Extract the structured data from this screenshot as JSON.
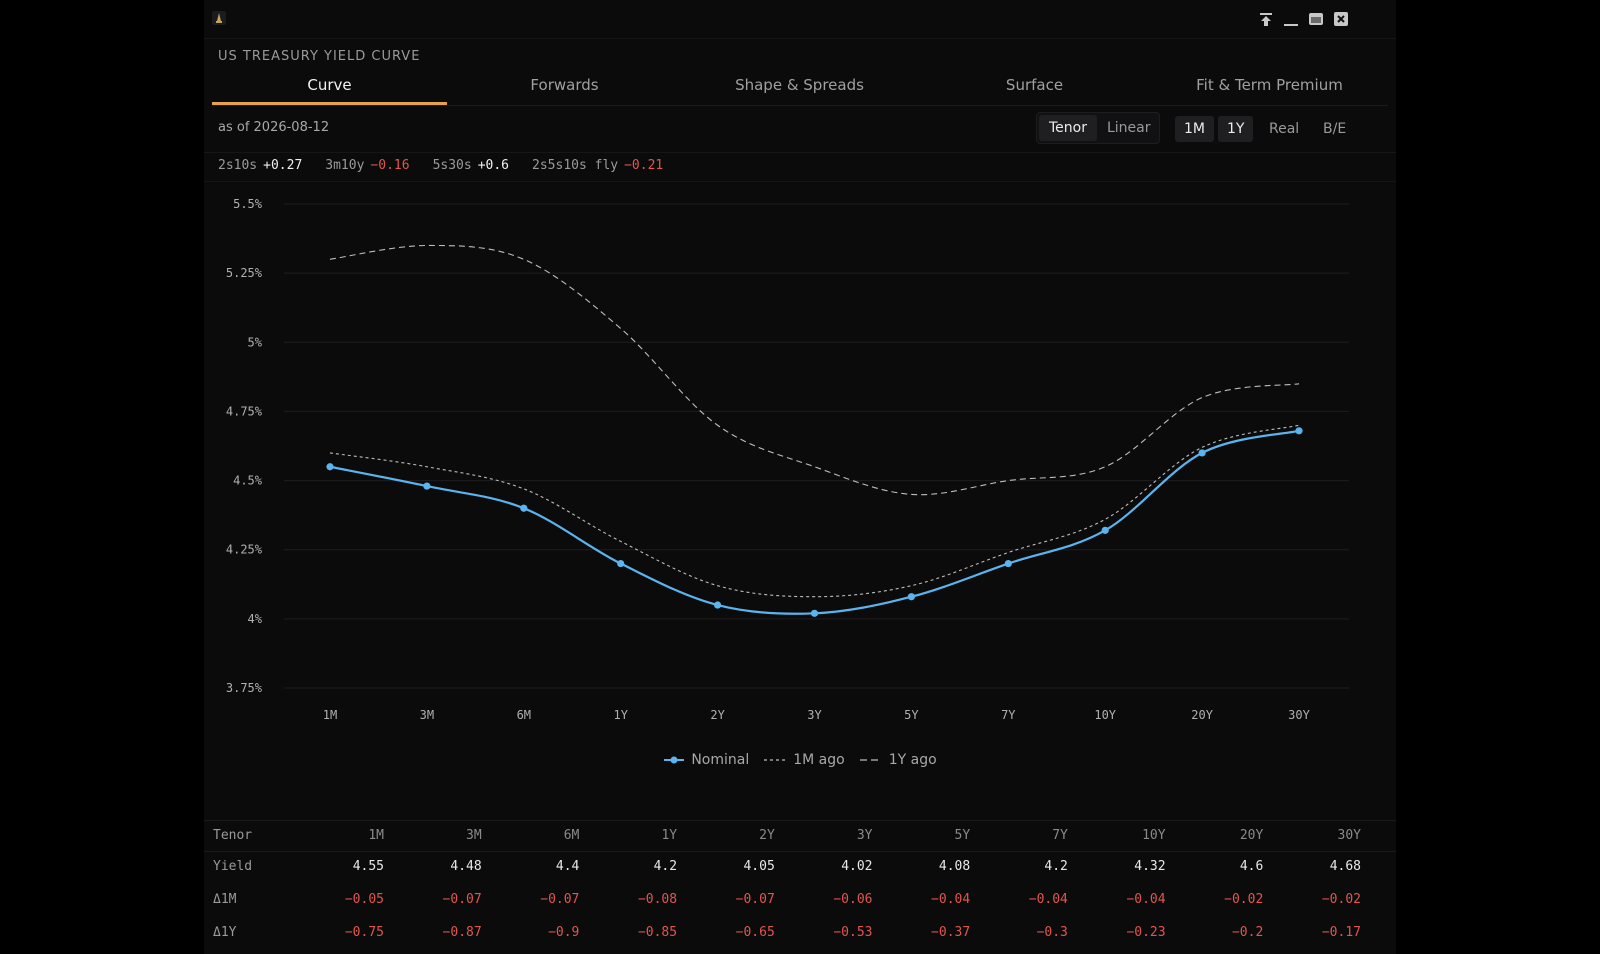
{
  "title": "US TREASURY YIELD CURVE",
  "tabs": [
    {
      "label": "Curve",
      "active": true
    },
    {
      "label": "Forwards",
      "active": false
    },
    {
      "label": "Shape & Spreads",
      "active": false
    },
    {
      "label": "Surface",
      "active": false
    },
    {
      "label": "Fit & Term Premium",
      "active": false
    }
  ],
  "as_of": "as of 2026-08-12",
  "axis_mode": {
    "options": [
      "Tenor",
      "Linear"
    ],
    "selected": "Tenor"
  },
  "comparisons": {
    "options": [
      "1M",
      "1Y"
    ],
    "selected": [
      "1M",
      "1Y"
    ]
  },
  "curve_types": [
    "Real",
    "B/E"
  ],
  "spreads": [
    {
      "label": "2s10s",
      "value": "+0.27"
    },
    {
      "label": "3m10y",
      "value": "−0.16"
    },
    {
      "label": "5s30s",
      "value": "+0.6"
    },
    {
      "label": "2s5s10s fly",
      "value": "−0.21"
    }
  ],
  "colors": {
    "nominal": "#5ab4ef",
    "comparison": "#bdbdbd",
    "accent": "#e8a04a",
    "negative": "#e0564f",
    "background": "#0b0b0c"
  },
  "chart_data": {
    "type": "line",
    "categories": [
      "1M",
      "3M",
      "6M",
      "1Y",
      "2Y",
      "3Y",
      "5Y",
      "7Y",
      "10Y",
      "20Y",
      "30Y"
    ],
    "series": [
      {
        "name": "Nominal",
        "style": "solid-markers",
        "values": [
          4.55,
          4.48,
          4.4,
          4.2,
          4.05,
          4.02,
          4.08,
          4.2,
          4.32,
          4.6,
          4.68
        ]
      },
      {
        "name": "1M ago",
        "style": "dotted",
        "values": [
          4.6,
          4.55,
          4.47,
          4.28,
          4.12,
          4.08,
          4.12,
          4.24,
          4.36,
          4.62,
          4.7
        ]
      },
      {
        "name": "1Y ago",
        "style": "dashed",
        "values": [
          5.3,
          5.35,
          5.3,
          5.05,
          4.7,
          4.55,
          4.45,
          4.5,
          4.55,
          4.8,
          4.85
        ]
      }
    ],
    "y_ticks": [
      "5.5%",
      "5.25%",
      "5%",
      "4.75%",
      "4.5%",
      "4.25%",
      "4%",
      "3.75%"
    ],
    "ylim": [
      3.75,
      5.5
    ],
    "grid": "horizontal",
    "legend_position": "bottom-center",
    "legend": [
      "Nominal",
      "1M ago",
      "1Y ago"
    ]
  },
  "table": {
    "header_label": "Tenor",
    "tenors": [
      "1M",
      "3M",
      "6M",
      "1Y",
      "2Y",
      "3Y",
      "5Y",
      "7Y",
      "10Y",
      "20Y",
      "30Y"
    ],
    "rows": [
      {
        "label": "Yield",
        "values": [
          "4.55",
          "4.48",
          "4.4",
          "4.2",
          "4.05",
          "4.02",
          "4.08",
          "4.2",
          "4.32",
          "4.6",
          "4.68"
        ]
      },
      {
        "label": "Δ1M",
        "values": [
          "−0.05",
          "−0.07",
          "−0.07",
          "−0.08",
          "−0.07",
          "−0.06",
          "−0.04",
          "−0.04",
          "−0.04",
          "−0.02",
          "−0.02"
        ]
      },
      {
        "label": "Δ1Y",
        "values": [
          "−0.75",
          "−0.87",
          "−0.9",
          "−0.85",
          "−0.65",
          "−0.53",
          "−0.37",
          "−0.3",
          "−0.23",
          "−0.2",
          "−0.17"
        ]
      }
    ]
  }
}
